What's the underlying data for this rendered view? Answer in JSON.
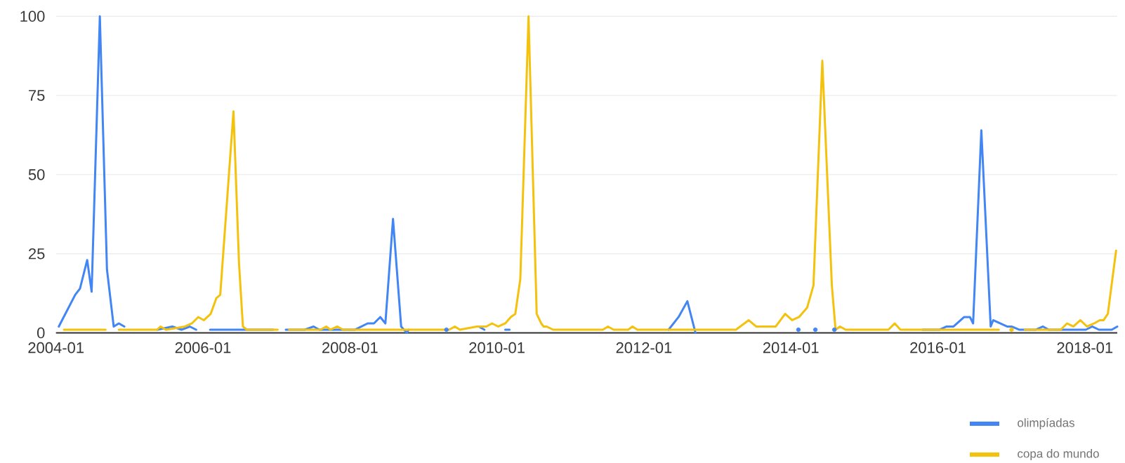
{
  "chart_data": {
    "type": "line",
    "xlim": [
      "2004-01-01",
      "2018-06-10"
    ],
    "xticks": [
      "2004-01",
      "2006-01",
      "2008-01",
      "2010-01",
      "2012-01",
      "2014-01",
      "2016-01",
      "2018-01"
    ],
    "ylim": [
      0,
      100
    ],
    "yticks": [
      0,
      25,
      50,
      75,
      100
    ],
    "grid": "y",
    "legend": "bottom right",
    "series": [
      {
        "name": "olimpíadas",
        "color": "#4285f4",
        "x": [
          "2004-01-15",
          "2004-04-05",
          "2004-04-29",
          "2004-06-04",
          "2004-06-26",
          "2004-08-06",
          "2004-09-11",
          "2004-10-14",
          "2004-11-09",
          "2004-12-06",
          "2005-01-15",
          "2005-05-18",
          "2005-08-01",
          "2005-09-16",
          "2005-10-27",
          "2005-11-28",
          "2005-12-20",
          "2006-02-06",
          "2006-12-15",
          "2007-01-05",
          "2007-02-17",
          "2007-05-20",
          "2007-07-03",
          "2007-08-01",
          "2008-01-26",
          "2008-03-28",
          "2008-04-29",
          "2008-05-30",
          "2008-06-25",
          "2008-08-02",
          "2008-09-12",
          "2008-10-10",
          "2008-10-19",
          "2008-11-15",
          "2009-04-24",
          "2009-05-20",
          "2009-10-02",
          "2009-10-30",
          "2009-11-20",
          "2010-02-12",
          "2010-03-03",
          "2010-04-01",
          "2012-05-02",
          "2012-06-21",
          "2012-08-04",
          "2012-09-14",
          "2012-10-15",
          "2014-02-08",
          "2014-03-01",
          "2014-05-01",
          "2014-05-20",
          "2014-08-04",
          "2014-09-01",
          "2015-10-16",
          "2016-01-10",
          "2016-02-14",
          "2016-03-18",
          "2016-05-10",
          "2016-06-08",
          "2016-06-24",
          "2016-08-04",
          "2016-09-20",
          "2016-10-02",
          "2016-11-06",
          "2016-12-10",
          "2017-01-02",
          "2017-02-09",
          "2017-05-02",
          "2017-06-06",
          "2017-07-04",
          "2018-01-06",
          "2018-02-07",
          "2018-03-10",
          "2018-05-13",
          "2018-06-10"
        ],
        "values": [
          2,
          12,
          14,
          23,
          13,
          100,
          20,
          2,
          3,
          2,
          null,
          1,
          2,
          1,
          2,
          1,
          null,
          1,
          1,
          null,
          1,
          1,
          2,
          1,
          1,
          3,
          3,
          5,
          3,
          36,
          2,
          0,
          1,
          null,
          1,
          null,
          2,
          1,
          null,
          1,
          1,
          null,
          1,
          5,
          10,
          0,
          null,
          1,
          null,
          1,
          null,
          1,
          null,
          1,
          1,
          2,
          2,
          5,
          5,
          3,
          64,
          2,
          4,
          3,
          2,
          2,
          1,
          1,
          2,
          1,
          1,
          2,
          1,
          1,
          2
        ]
      },
      {
        "name": "copa do mundo",
        "color": "#f4c20d",
        "x": [
          "2004-02-10",
          "2004-09-04",
          "2004-10-01",
          "2004-11-09",
          "2005-05-17",
          "2005-06-03",
          "2005-06-30",
          "2005-10-03",
          "2005-11-07",
          "2005-12-08",
          "2006-01-06",
          "2006-02-09",
          "2006-03-07",
          "2006-03-26",
          "2006-05-31",
          "2006-06-28",
          "2006-07-17",
          "2006-08-06",
          "2007-01-07",
          "2007-01-25",
          "2007-03-03",
          "2007-08-07",
          "2007-09-05",
          "2007-09-26",
          "2007-10-30",
          "2007-11-28",
          "2009-05-07",
          "2009-06-05",
          "2009-06-30",
          "2009-09-23",
          "2009-11-09",
          "2009-12-07",
          "2010-01-08",
          "2010-02-12",
          "2010-03-09",
          "2010-04-01",
          "2010-04-26",
          "2010-06-06",
          "2010-07-16",
          "2010-08-08",
          "2010-08-20",
          "2010-09-05",
          "2010-10-06",
          "2011-06-10",
          "2011-07-05",
          "2011-08-03",
          "2011-10-14",
          "2011-11-05",
          "2011-11-30",
          "2013-04-02",
          "2013-06-04",
          "2013-07-11",
          "2013-10-17",
          "2013-12-03",
          "2014-01-07",
          "2014-02-11",
          "2014-03-21",
          "2014-04-22",
          "2014-06-05",
          "2014-07-22",
          "2014-08-10",
          "2014-09-02",
          "2014-09-30",
          "2015-04-29",
          "2015-05-30",
          "2015-06-28",
          "2016-10-30",
          "2016-11-15",
          "2017-01-02",
          "2017-01-20",
          "2017-03-07",
          "2017-09-03",
          "2017-10-04",
          "2017-11-05",
          "2017-12-09",
          "2018-01-12",
          "2018-02-17",
          "2018-03-14",
          "2018-04-03",
          "2018-04-24",
          "2018-06-04"
        ],
        "values": [
          1,
          1,
          null,
          1,
          1,
          2,
          1,
          2,
          3,
          5,
          4,
          6,
          11,
          12,
          70,
          22,
          2,
          1,
          1,
          null,
          1,
          1,
          2,
          1,
          2,
          1,
          1,
          2,
          1,
          2,
          2,
          3,
          2,
          3,
          5,
          6,
          17,
          100,
          6,
          3,
          2,
          2,
          1,
          1,
          2,
          1,
          1,
          2,
          1,
          1,
          4,
          2,
          2,
          6,
          4,
          5,
          8,
          15,
          86,
          15,
          1,
          2,
          1,
          1,
          3,
          1,
          1,
          null,
          1,
          null,
          1,
          1,
          3,
          2,
          4,
          2,
          3,
          4,
          4,
          6,
          26
        ]
      }
    ]
  }
}
